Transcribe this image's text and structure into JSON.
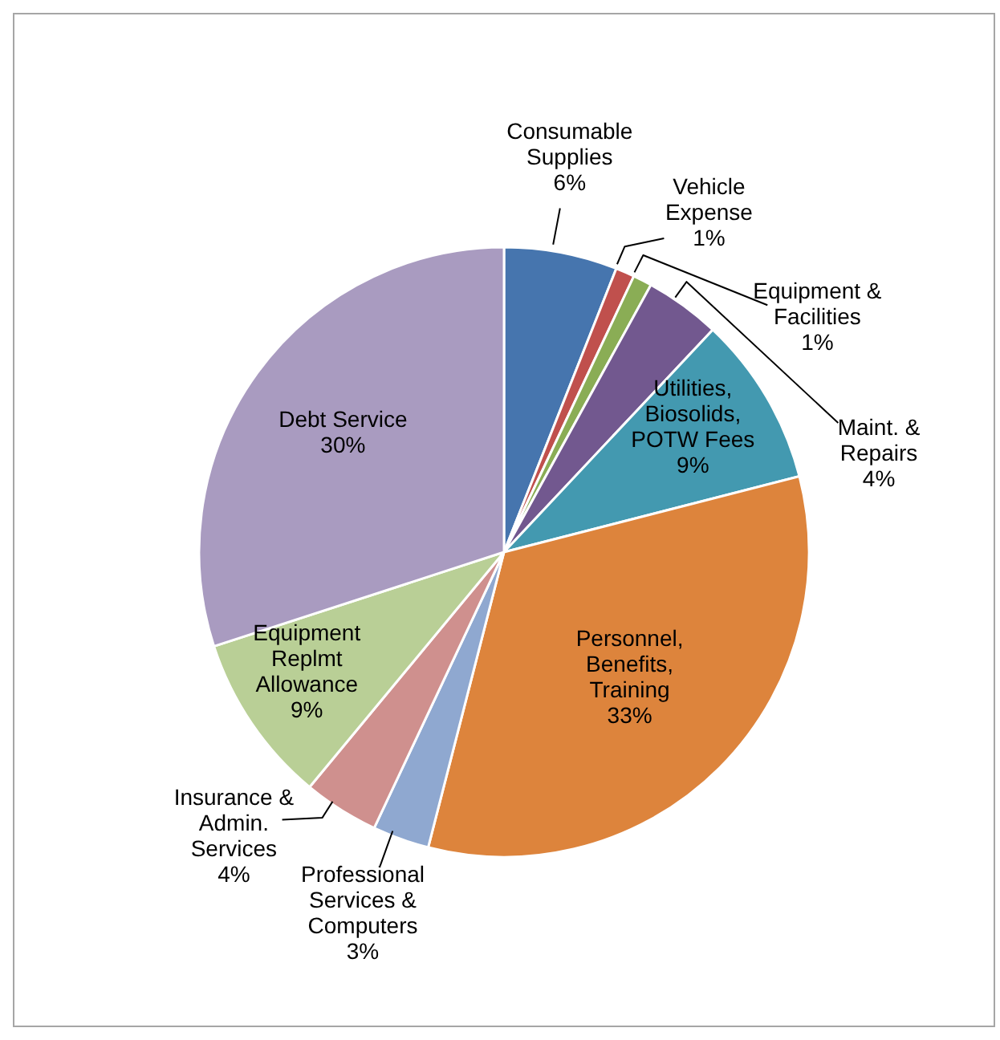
{
  "chart_data": {
    "type": "pie",
    "categories": [
      "Consumable Supplies",
      "Vehicle Expense",
      "Equipment & Facilities",
      "Maint. & Repairs",
      "Utilities, Biosolids, POTW Fees",
      "Personnel, Benefits, Training",
      "Professional Services & Computers",
      "Insurance & Admin. Services",
      "Equipment Replmt Allowance",
      "Debt Service"
    ],
    "values": [
      6,
      1,
      1,
      4,
      9,
      33,
      3,
      4,
      9,
      30
    ],
    "colors": [
      "#4675ae",
      "#c0504d",
      "#8aad55",
      "#72588f",
      "#4399b0",
      "#dd843c",
      "#8fa8d0",
      "#cf908e",
      "#b9cf96",
      "#a99bc0"
    ],
    "value_labels": [
      "6%",
      "1%",
      "1%",
      "4%",
      "9%",
      "33%",
      "3%",
      "4%",
      "9%",
      "30%"
    ],
    "legend": false
  }
}
